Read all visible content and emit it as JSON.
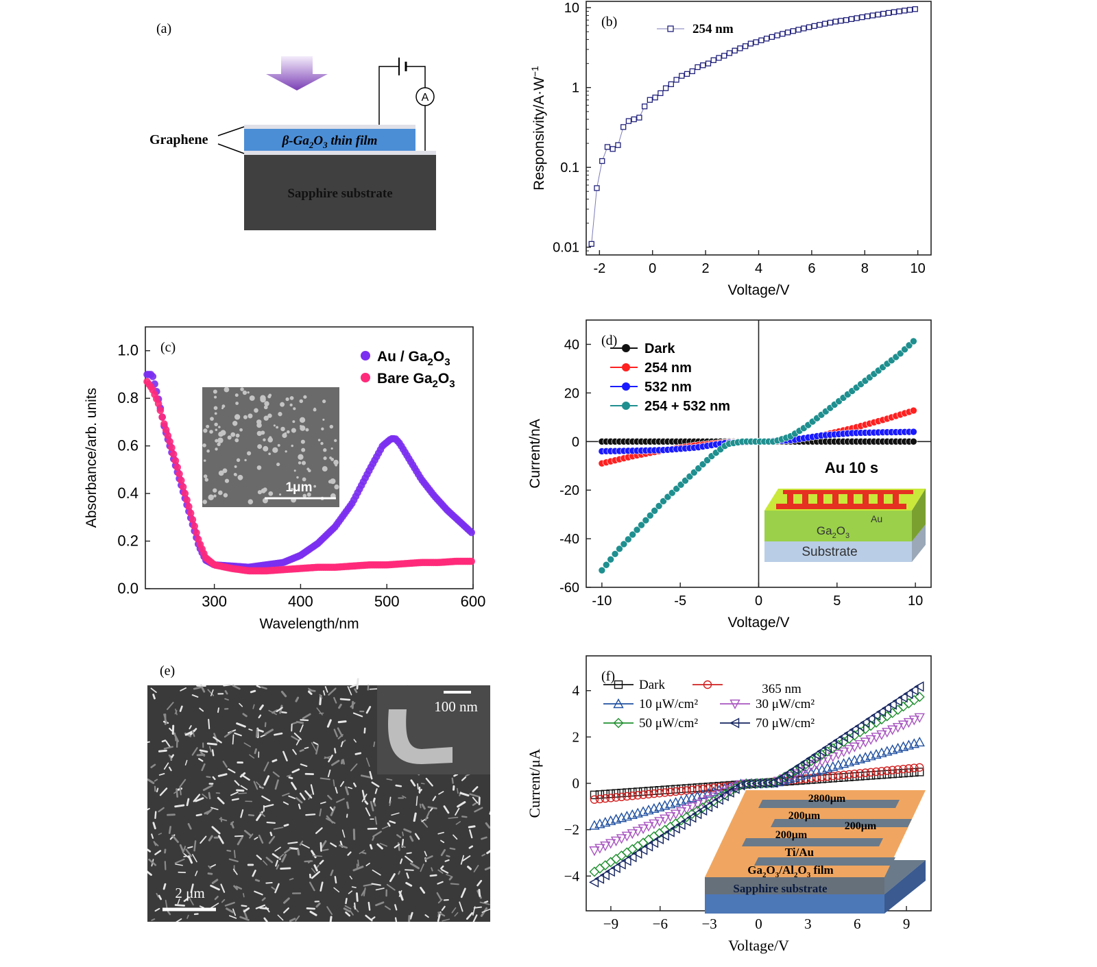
{
  "panel_a": {
    "label": "(a)",
    "graphene_label": "Graphene",
    "film_label_prefix": "β-Ga",
    "film_sub1": "2",
    "film_mid": "O",
    "film_sub2": "3",
    "film_suffix": " thin film",
    "substrate_label": "Sapphire substrate",
    "ammeter": "A"
  },
  "panel_e": {
    "label": "(e)",
    "scale_main": "2 μm",
    "scale_inset": "100 nm"
  },
  "chart_data": [
    {
      "id": "b",
      "label": "(b)",
      "type": "scatter",
      "xlabel": "Voltage/V",
      "ylabel": "Responsivity/A·W",
      "ylabel_sup": "−1",
      "yscale": "log",
      "xlim": [
        -2.5,
        10.5
      ],
      "ylim": [
        0.008,
        12
      ],
      "xticks": [
        -2,
        0,
        2,
        4,
        6,
        8,
        10
      ],
      "yticks": [
        0.01,
        0.1,
        1,
        10
      ],
      "ytick_labels": [
        "0.01",
        "0.1",
        "1",
        "10"
      ],
      "legend": [
        "254 nm"
      ],
      "color": "#1f1f7a",
      "x": [
        -2.3,
        -2.1,
        -1.9,
        -1.7,
        -1.5,
        -1.3,
        -1.1,
        -0.9,
        -0.7,
        -0.5,
        -0.3,
        -0.1,
        0.1,
        0.3,
        0.5,
        0.7,
        0.9,
        1.1,
        1.3,
        1.5,
        1.7,
        1.9,
        2.1,
        2.3,
        2.5,
        2.7,
        2.9,
        3.1,
        3.3,
        3.5,
        3.7,
        3.9,
        4.1,
        4.3,
        4.5,
        4.7,
        4.9,
        5.1,
        5.3,
        5.5,
        5.7,
        5.9,
        6.1,
        6.3,
        6.5,
        6.7,
        6.9,
        7.1,
        7.3,
        7.5,
        7.7,
        7.9,
        8.1,
        8.3,
        8.5,
        8.7,
        8.9,
        9.1,
        9.3,
        9.5,
        9.7,
        9.9
      ],
      "y": [
        0.011,
        0.055,
        0.12,
        0.18,
        0.17,
        0.19,
        0.32,
        0.38,
        0.4,
        0.42,
        0.58,
        0.7,
        0.75,
        0.85,
        0.98,
        1.1,
        1.25,
        1.4,
        1.48,
        1.6,
        1.8,
        1.9,
        2.0,
        2.2,
        2.35,
        2.5,
        2.7,
        2.9,
        3.1,
        3.3,
        3.55,
        3.7,
        3.9,
        4.1,
        4.3,
        4.5,
        4.7,
        4.9,
        5.1,
        5.3,
        5.5,
        5.7,
        5.9,
        6.1,
        6.3,
        6.5,
        6.7,
        6.85,
        7.0,
        7.2,
        7.4,
        7.6,
        7.8,
        8.0,
        8.2,
        8.4,
        8.6,
        8.8,
        9.0,
        9.2,
        9.4,
        9.6
      ]
    },
    {
      "id": "c",
      "label": "(c)",
      "type": "scatter",
      "xlabel": "Wavelength/nm",
      "ylabel": "Absorbance/arb. units",
      "xlim": [
        220,
        600
      ],
      "ylim": [
        0,
        1.1
      ],
      "xticks": [
        300,
        400,
        500,
        600
      ],
      "yticks": [
        0.0,
        0.2,
        0.4,
        0.6,
        0.8,
        1.0
      ],
      "ytick_labels": [
        "0.0",
        "0.2",
        "0.4",
        "0.6",
        "0.8",
        "1.0"
      ],
      "inset_scale": "1μm",
      "series": [
        {
          "name": "Au / Ga",
          "sub": "2",
          "mid": "O",
          "sub2": "3",
          "color": "#7b2ff0",
          "x": [
            222,
            228,
            235,
            242,
            250,
            258,
            266,
            274,
            282,
            290,
            300,
            320,
            340,
            360,
            380,
            400,
            420,
            440,
            460,
            480,
            495,
            505,
            510,
            515,
            525,
            540,
            555,
            570,
            585,
            600
          ],
          "y": [
            0.9,
            0.9,
            0.8,
            0.68,
            0.58,
            0.48,
            0.38,
            0.28,
            0.18,
            0.12,
            0.1,
            0.095,
            0.09,
            0.1,
            0.11,
            0.14,
            0.19,
            0.26,
            0.36,
            0.5,
            0.6,
            0.63,
            0.63,
            0.61,
            0.55,
            0.46,
            0.39,
            0.33,
            0.28,
            0.23
          ]
        },
        {
          "name": "Bare Ga",
          "sub": "2",
          "mid": "O",
          "sub2": "3",
          "color": "#ff2a7a",
          "x": [
            222,
            228,
            235,
            242,
            250,
            258,
            266,
            274,
            282,
            290,
            300,
            320,
            340,
            360,
            380,
            400,
            420,
            440,
            460,
            480,
            500,
            520,
            540,
            560,
            580,
            600
          ],
          "y": [
            0.87,
            0.84,
            0.78,
            0.69,
            0.6,
            0.5,
            0.4,
            0.3,
            0.2,
            0.13,
            0.1,
            0.085,
            0.075,
            0.075,
            0.08,
            0.085,
            0.09,
            0.09,
            0.095,
            0.1,
            0.1,
            0.105,
            0.11,
            0.11,
            0.115,
            0.115
          ]
        }
      ]
    },
    {
      "id": "d",
      "label": "(d)",
      "type": "scatter",
      "xlabel": "Voltage/V",
      "ylabel": "Current/nA",
      "xlim": [
        -11,
        11
      ],
      "ylim": [
        -60,
        50
      ],
      "xticks": [
        -10,
        -5,
        0,
        5,
        10
      ],
      "yticks": [
        -60,
        -40,
        -20,
        0,
        20,
        40
      ],
      "inset_title": "Au 10 s",
      "inset_au": "Au",
      "inset_ga": "Ga",
      "inset_ga_sub1": "2",
      "inset_ga_o": "O",
      "inset_ga_sub2": "3",
      "inset_substrate": "Substrate",
      "series": [
        {
          "name": "Dark",
          "color": "#111111",
          "x": [
            -10,
            -8,
            -6,
            -4,
            -2,
            0,
            2,
            4,
            6,
            8,
            10
          ],
          "y": [
            0,
            0,
            0,
            0,
            0,
            0,
            0,
            0,
            0,
            0,
            0
          ]
        },
        {
          "name": "254 nm",
          "color": "#ff2020",
          "x": [
            -10,
            -8,
            -6,
            -4,
            -2,
            0,
            2,
            4,
            6,
            8,
            10
          ],
          "y": [
            -9,
            -6,
            -3.5,
            -1.5,
            -0.3,
            0,
            0.5,
            2.5,
            5.5,
            9,
            13
          ]
        },
        {
          "name": "532 nm",
          "color": "#1a1aff",
          "x": [
            -10,
            -8,
            -6,
            -4,
            -2,
            0,
            2,
            4,
            6,
            8,
            10
          ],
          "y": [
            -4,
            -3.8,
            -3.5,
            -2.5,
            -0.5,
            0,
            0.5,
            2.5,
            3.5,
            3.8,
            4
          ]
        },
        {
          "name": "254 + 532 nm",
          "color": "#1f8f8f",
          "x": [
            -10,
            -9,
            -8,
            -7,
            -6,
            -5,
            -4,
            -3,
            -2,
            -1,
            0,
            1,
            2,
            3,
            4,
            5,
            6,
            7,
            8,
            9,
            10
          ],
          "y": [
            -53,
            -45,
            -38,
            -31,
            -24,
            -18,
            -12,
            -6,
            -1,
            0,
            0,
            0,
            2,
            6,
            11,
            16,
            21,
            26,
            31,
            36,
            42
          ]
        }
      ]
    },
    {
      "id": "f",
      "label": "(f)",
      "type": "scatter",
      "xlabel": "Voltage/V",
      "ylabel": "Current/μA",
      "xlim": [
        -10.5,
        10.5
      ],
      "ylim": [
        -5.5,
        5.5
      ],
      "xticks": [
        -9,
        -6,
        -3,
        0,
        3,
        6,
        9
      ],
      "yticks": [
        -4,
        -2,
        0,
        2,
        4
      ],
      "ytick_labels": [
        "−4",
        "−2",
        "0",
        "2",
        "4"
      ],
      "xtick_labels": [
        "−9",
        "−6",
        "−3",
        "0",
        "3",
        "6",
        "9"
      ],
      "legend_header": "365 nm",
      "inset_dims": [
        "2800μm",
        "200μm",
        "200μm",
        "200μm"
      ],
      "inset_electrode": "Ti/Au",
      "inset_film": "Ga",
      "inset_film_sub1": "2",
      "inset_film_mid": "O",
      "inset_film_sub2": "3",
      "inset_film_mid2": "/Al",
      "inset_film_sub3": "2",
      "inset_film_mid3": "O",
      "inset_film_sub4": "3",
      "inset_film_end": " film",
      "inset_substrate": "Sapphire  substrate",
      "series": [
        {
          "name": "Dark",
          "marker": "square",
          "color": "#111111",
          "slope": 0.05,
          "knee": 0
        },
        {
          "name": "",
          "marker": "circle",
          "color": "#d21e1e",
          "slope": 0.07,
          "knee": 0
        },
        {
          "name": "10 μW/cm²",
          "marker": "triangle-up",
          "color": "#1f4fa0",
          "slope": 0.2,
          "knee": 1
        },
        {
          "name": "30 μW/cm²",
          "marker": "triangle-down",
          "color": "#a855c0",
          "slope": 0.32,
          "knee": 1
        },
        {
          "name": "50 μW/cm²",
          "marker": "diamond",
          "color": "#1f8f2f",
          "slope": 0.42,
          "knee": 1
        },
        {
          "name": "70 μW/cm²",
          "marker": "triangle-left",
          "color": "#13235f",
          "slope": 0.47,
          "knee": 1
        }
      ]
    }
  ]
}
